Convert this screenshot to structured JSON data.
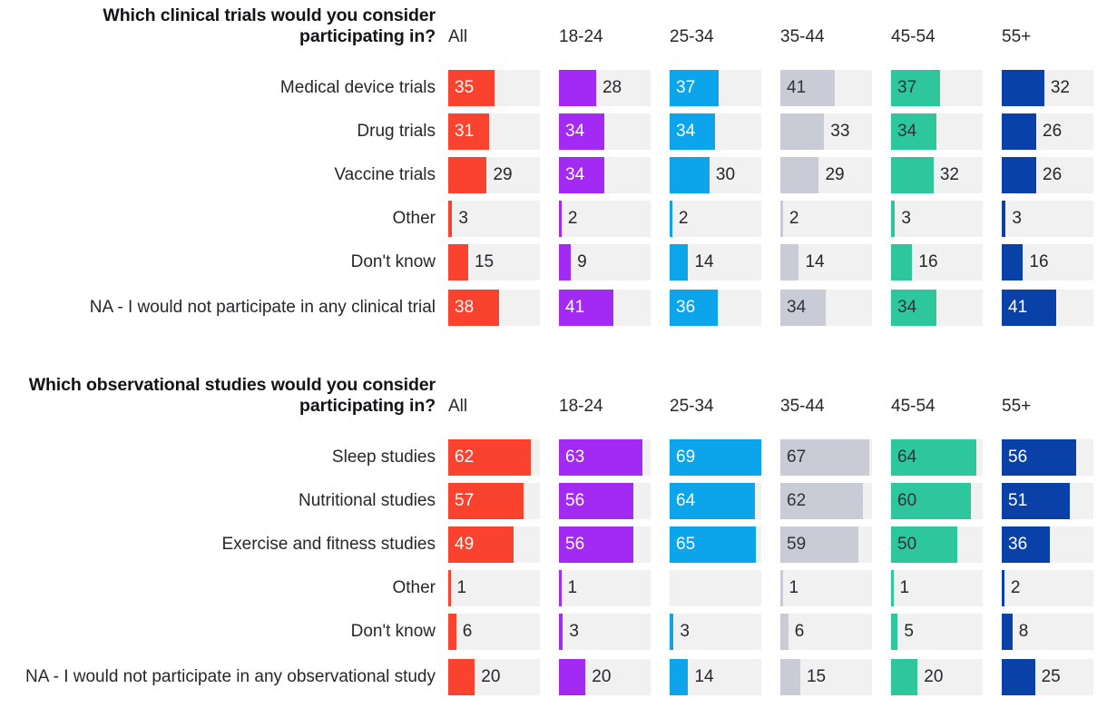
{
  "scale_max": 69,
  "track_color": "#F1F1F2",
  "text_color": "#26262B",
  "columns": [
    {
      "key": "all",
      "label": "All",
      "color": "#F9432E",
      "inside_text": "#FFFFFF"
    },
    {
      "key": "18-24",
      "label": "18-24",
      "color": "#A32AF2",
      "inside_text": "#FFFFFF"
    },
    {
      "key": "25-34",
      "label": "25-34",
      "color": "#0CA4EB",
      "inside_text": "#FFFFFF"
    },
    {
      "key": "35-44",
      "label": "35-44",
      "color": "#C9CCD7",
      "inside_text": "#31313A"
    },
    {
      "key": "45-54",
      "label": "45-54",
      "color": "#2EC79D",
      "inside_text": "#31313A"
    },
    {
      "key": "55+",
      "label": "55+",
      "color": "#0A41A8",
      "inside_text": "#FFFFFF"
    }
  ],
  "sections": [
    {
      "title": "Which clinical trials would you consider participating in?",
      "rows": [
        {
          "label": "Medical device trials",
          "cells": [
            {
              "value": 35,
              "inside": true
            },
            {
              "value": 28,
              "inside": false
            },
            {
              "value": 37,
              "inside": true
            },
            {
              "value": 41,
              "inside": true
            },
            {
              "value": 37,
              "inside": true
            },
            {
              "value": 32,
              "inside": false
            }
          ]
        },
        {
          "label": "Drug trials",
          "cells": [
            {
              "value": 31,
              "inside": true
            },
            {
              "value": 34,
              "inside": true
            },
            {
              "value": 34,
              "inside": true
            },
            {
              "value": 33,
              "inside": false
            },
            {
              "value": 34,
              "inside": true
            },
            {
              "value": 26,
              "inside": false
            }
          ]
        },
        {
          "label": "Vaccine trials",
          "cells": [
            {
              "value": 29,
              "inside": false
            },
            {
              "value": 34,
              "inside": true
            },
            {
              "value": 30,
              "inside": false
            },
            {
              "value": 29,
              "inside": false
            },
            {
              "value": 32,
              "inside": false
            },
            {
              "value": 26,
              "inside": false
            }
          ]
        },
        {
          "label": "Other",
          "cells": [
            {
              "value": 3,
              "inside": false
            },
            {
              "value": 2,
              "inside": false
            },
            {
              "value": 2,
              "inside": false
            },
            {
              "value": 2,
              "inside": false
            },
            {
              "value": 3,
              "inside": false
            },
            {
              "value": 3,
              "inside": false
            }
          ]
        },
        {
          "label": "Don't know",
          "cells": [
            {
              "value": 15,
              "inside": false
            },
            {
              "value": 9,
              "inside": false
            },
            {
              "value": 14,
              "inside": false
            },
            {
              "value": 14,
              "inside": false
            },
            {
              "value": 16,
              "inside": false
            },
            {
              "value": 16,
              "inside": false
            }
          ]
        },
        {
          "label": "NA - I would not participate in any clinical trial",
          "tall": true,
          "cells": [
            {
              "value": 38,
              "inside": true
            },
            {
              "value": 41,
              "inside": true
            },
            {
              "value": 36,
              "inside": true
            },
            {
              "value": 34,
              "inside": true
            },
            {
              "value": 34,
              "inside": true
            },
            {
              "value": 41,
              "inside": true
            }
          ]
        }
      ]
    },
    {
      "title": "Which observational studies would you consider participating in?",
      "rows": [
        {
          "label": "Sleep studies",
          "cells": [
            {
              "value": 62,
              "inside": true
            },
            {
              "value": 63,
              "inside": true
            },
            {
              "value": 69,
              "inside": true
            },
            {
              "value": 67,
              "inside": true
            },
            {
              "value": 64,
              "inside": true
            },
            {
              "value": 56,
              "inside": true
            }
          ]
        },
        {
          "label": "Nutritional studies",
          "cells": [
            {
              "value": 57,
              "inside": true
            },
            {
              "value": 56,
              "inside": true
            },
            {
              "value": 64,
              "inside": true
            },
            {
              "value": 62,
              "inside": true
            },
            {
              "value": 60,
              "inside": true
            },
            {
              "value": 51,
              "inside": true
            }
          ]
        },
        {
          "label": "Exercise and fitness studies",
          "cells": [
            {
              "value": 49,
              "inside": true
            },
            {
              "value": 56,
              "inside": true
            },
            {
              "value": 65,
              "inside": true
            },
            {
              "value": 59,
              "inside": true
            },
            {
              "value": 50,
              "inside": true
            },
            {
              "value": 36,
              "inside": true
            }
          ]
        },
        {
          "label": "Other",
          "cells": [
            {
              "value": 1,
              "inside": false
            },
            {
              "value": 1,
              "inside": false
            },
            {
              "value": null,
              "inside": false
            },
            {
              "value": 1,
              "inside": false
            },
            {
              "value": 1,
              "inside": false
            },
            {
              "value": 2,
              "inside": false
            }
          ]
        },
        {
          "label": "Don't know",
          "cells": [
            {
              "value": 6,
              "inside": false
            },
            {
              "value": 3,
              "inside": false
            },
            {
              "value": 3,
              "inside": false
            },
            {
              "value": 6,
              "inside": false
            },
            {
              "value": 5,
              "inside": false
            },
            {
              "value": 8,
              "inside": false
            }
          ]
        },
        {
          "label": "NA - I would not participate in any observational study",
          "tall": true,
          "cells": [
            {
              "value": 20,
              "inside": false
            },
            {
              "value": 20,
              "inside": false
            },
            {
              "value": 14,
              "inside": false
            },
            {
              "value": 15,
              "inside": false
            },
            {
              "value": 20,
              "inside": false
            },
            {
              "value": 25,
              "inside": false
            }
          ]
        }
      ]
    }
  ],
  "chart_data": [
    {
      "type": "bar",
      "orientation": "horizontal",
      "title": "Which clinical trials would you consider participating in?",
      "categories": [
        "Medical device trials",
        "Drug trials",
        "Vaccine trials",
        "Other",
        "Don't know",
        "NA - I would not participate in any clinical trial"
      ],
      "series": [
        {
          "name": "All",
          "color": "#F9432E",
          "values": [
            35,
            31,
            29,
            3,
            15,
            38
          ]
        },
        {
          "name": "18-24",
          "color": "#A32AF2",
          "values": [
            28,
            34,
            34,
            2,
            9,
            41
          ]
        },
        {
          "name": "25-34",
          "color": "#0CA4EB",
          "values": [
            37,
            34,
            30,
            2,
            14,
            36
          ]
        },
        {
          "name": "35-44",
          "color": "#C9CCD7",
          "values": [
            41,
            33,
            29,
            2,
            14,
            34
          ]
        },
        {
          "name": "45-54",
          "color": "#2EC79D",
          "values": [
            37,
            34,
            32,
            3,
            16,
            34
          ]
        },
        {
          "name": "55+",
          "color": "#0A41A8",
          "values": [
            32,
            26,
            26,
            3,
            16,
            41
          ]
        }
      ],
      "xlim": [
        0,
        69
      ],
      "grid": false,
      "value_labels": true,
      "legend_position": "column-headers-top"
    },
    {
      "type": "bar",
      "orientation": "horizontal",
      "title": "Which observational studies would you consider participating in?",
      "categories": [
        "Sleep studies",
        "Nutritional studies",
        "Exercise and fitness studies",
        "Other",
        "Don't know",
        "NA - I would not participate in any observational study"
      ],
      "series": [
        {
          "name": "All",
          "color": "#F9432E",
          "values": [
            62,
            57,
            49,
            1,
            6,
            20
          ]
        },
        {
          "name": "18-24",
          "color": "#A32AF2",
          "values": [
            63,
            56,
            56,
            1,
            3,
            20
          ]
        },
        {
          "name": "25-34",
          "color": "#0CA4EB",
          "values": [
            69,
            64,
            65,
            null,
            3,
            14
          ]
        },
        {
          "name": "35-44",
          "color": "#C9CCD7",
          "values": [
            67,
            62,
            59,
            1,
            6,
            15
          ]
        },
        {
          "name": "45-54",
          "color": "#2EC79D",
          "values": [
            64,
            60,
            50,
            1,
            5,
            20
          ]
        },
        {
          "name": "55+",
          "color": "#0A41A8",
          "values": [
            56,
            51,
            36,
            2,
            8,
            25
          ]
        }
      ],
      "xlim": [
        0,
        69
      ],
      "grid": false,
      "value_labels": true,
      "legend_position": "column-headers-top"
    }
  ]
}
